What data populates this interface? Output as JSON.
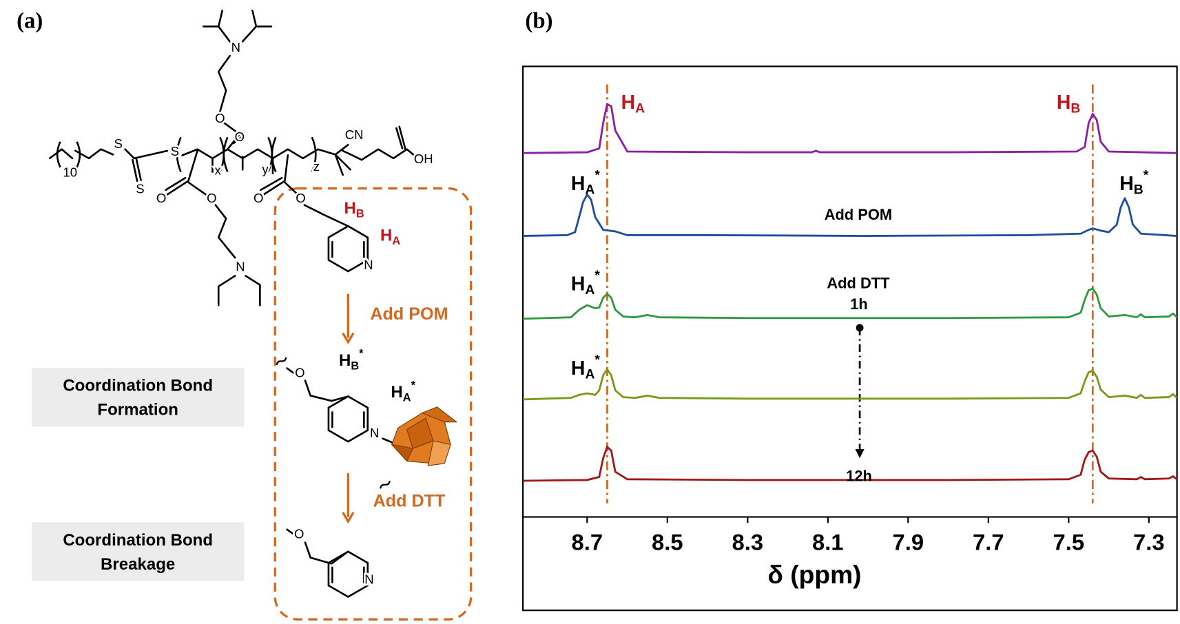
{
  "panel_a": {
    "label": "(a)",
    "atoms": [
      "10",
      "S",
      "S",
      "S",
      "x",
      "y",
      "z",
      "CN",
      "OH",
      "O",
      "O",
      "N",
      "O",
      "O",
      "N",
      "O",
      "O",
      "N",
      "O",
      "N",
      "O",
      "N"
    ],
    "protons": [
      {
        "base": "H",
        "sub": "B"
      },
      {
        "base": "H",
        "sub": "A"
      },
      {
        "base": "H",
        "sub": "B",
        "sup": "*"
      },
      {
        "base": "H",
        "sub": "A",
        "sup": "*"
      }
    ],
    "steps": [
      "Add POM",
      "Add DTT"
    ],
    "boxes": [
      [
        "Coordination Bond",
        "Formation"
      ],
      [
        "Coordination Bond",
        "Breakage"
      ]
    ]
  },
  "panel_b": {
    "label": "(b)"
  },
  "chart_data": {
    "type": "line",
    "xlabel": "δ (ppm)",
    "xlim": [
      8.86,
      7.23
    ],
    "xticks": [
      8.7,
      8.5,
      8.3,
      8.1,
      7.9,
      7.7,
      7.5,
      7.3
    ],
    "reference_lines": [
      8.65,
      7.44
    ],
    "reference_line_color": "#d2691e",
    "series": [
      {
        "color": "#8a1fa8",
        "x": [
          8.86,
          8.7,
          8.67,
          8.66,
          8.65,
          8.64,
          8.63,
          8.6,
          8.3,
          8.14,
          8.13,
          8.12,
          7.8,
          7.48,
          7.46,
          7.45,
          7.44,
          7.43,
          7.42,
          7.4,
          7.23
        ],
        "values": [
          0,
          1,
          6,
          40,
          65,
          62,
          30,
          2,
          1,
          1,
          3,
          1,
          1,
          2,
          8,
          40,
          52,
          44,
          15,
          2,
          0
        ]
      },
      {
        "color": "#1f4e9c",
        "x": [
          8.86,
          8.75,
          8.73,
          8.72,
          8.71,
          8.7,
          8.69,
          8.68,
          8.66,
          8.63,
          8.6,
          8.4,
          8.0,
          7.6,
          7.47,
          7.45,
          7.44,
          7.42,
          7.4,
          7.38,
          7.37,
          7.36,
          7.35,
          7.34,
          7.32,
          7.23
        ],
        "values": [
          0,
          1,
          5,
          25,
          45,
          55,
          48,
          25,
          8,
          6,
          1,
          1,
          0,
          1,
          3,
          8,
          10,
          7,
          5,
          15,
          38,
          50,
          38,
          15,
          3,
          0
        ]
      },
      {
        "color": "#2e9a3e",
        "x": [
          8.86,
          8.74,
          8.72,
          8.7,
          8.68,
          8.67,
          8.66,
          8.65,
          8.64,
          8.63,
          8.61,
          8.58,
          8.55,
          8.52,
          8.3,
          7.8,
          7.5,
          7.47,
          7.46,
          7.45,
          7.44,
          7.43,
          7.42,
          7.4,
          7.36,
          7.33,
          7.32,
          7.31,
          7.25,
          7.24,
          7.23
        ],
        "values": [
          0,
          2,
          12,
          18,
          14,
          15,
          28,
          33,
          28,
          12,
          3,
          2,
          5,
          2,
          1,
          1,
          2,
          8,
          25,
          38,
          40,
          32,
          14,
          3,
          5,
          2,
          6,
          2,
          3,
          7,
          2
        ]
      },
      {
        "color": "#7a9a1a",
        "x": [
          8.86,
          8.74,
          8.72,
          8.7,
          8.68,
          8.67,
          8.66,
          8.65,
          8.64,
          8.63,
          8.61,
          8.58,
          8.55,
          8.52,
          8.3,
          7.8,
          7.5,
          7.47,
          7.46,
          7.45,
          7.44,
          7.43,
          7.42,
          7.4,
          7.36,
          7.33,
          7.32,
          7.31,
          7.25,
          7.24,
          7.23
        ],
        "values": [
          0,
          2,
          6,
          8,
          6,
          12,
          32,
          40,
          32,
          12,
          3,
          2,
          5,
          2,
          1,
          1,
          2,
          8,
          24,
          36,
          38,
          30,
          13,
          3,
          5,
          2,
          6,
          2,
          3,
          7,
          2
        ]
      },
      {
        "color": "#a01818",
        "x": [
          8.86,
          8.7,
          8.67,
          8.66,
          8.65,
          8.64,
          8.63,
          8.6,
          8.3,
          7.8,
          7.5,
          7.47,
          7.46,
          7.45,
          7.44,
          7.43,
          7.42,
          7.4,
          7.33,
          7.32,
          7.31,
          7.25,
          7.24,
          7.23
        ],
        "values": [
          0,
          1,
          5,
          30,
          45,
          40,
          12,
          2,
          1,
          1,
          2,
          8,
          28,
          38,
          40,
          32,
          12,
          3,
          2,
          5,
          2,
          3,
          6,
          2
        ]
      }
    ],
    "annotations": [
      {
        "base": "H",
        "sub": "A"
      },
      {
        "base": "H",
        "sub": "B"
      },
      {
        "base": "H",
        "sub": "A",
        "sup": "*"
      },
      {
        "base": "H",
        "sub": "B",
        "sup": "*"
      },
      {
        "text": "Add POM"
      },
      {
        "text": "Add DTT"
      },
      {
        "text": "1h"
      },
      {
        "text": "12h"
      },
      {
        "base": "H",
        "sub": "A",
        "sup": "*"
      },
      {
        "base": "H",
        "sub": "A",
        "sup": "*"
      }
    ]
  }
}
